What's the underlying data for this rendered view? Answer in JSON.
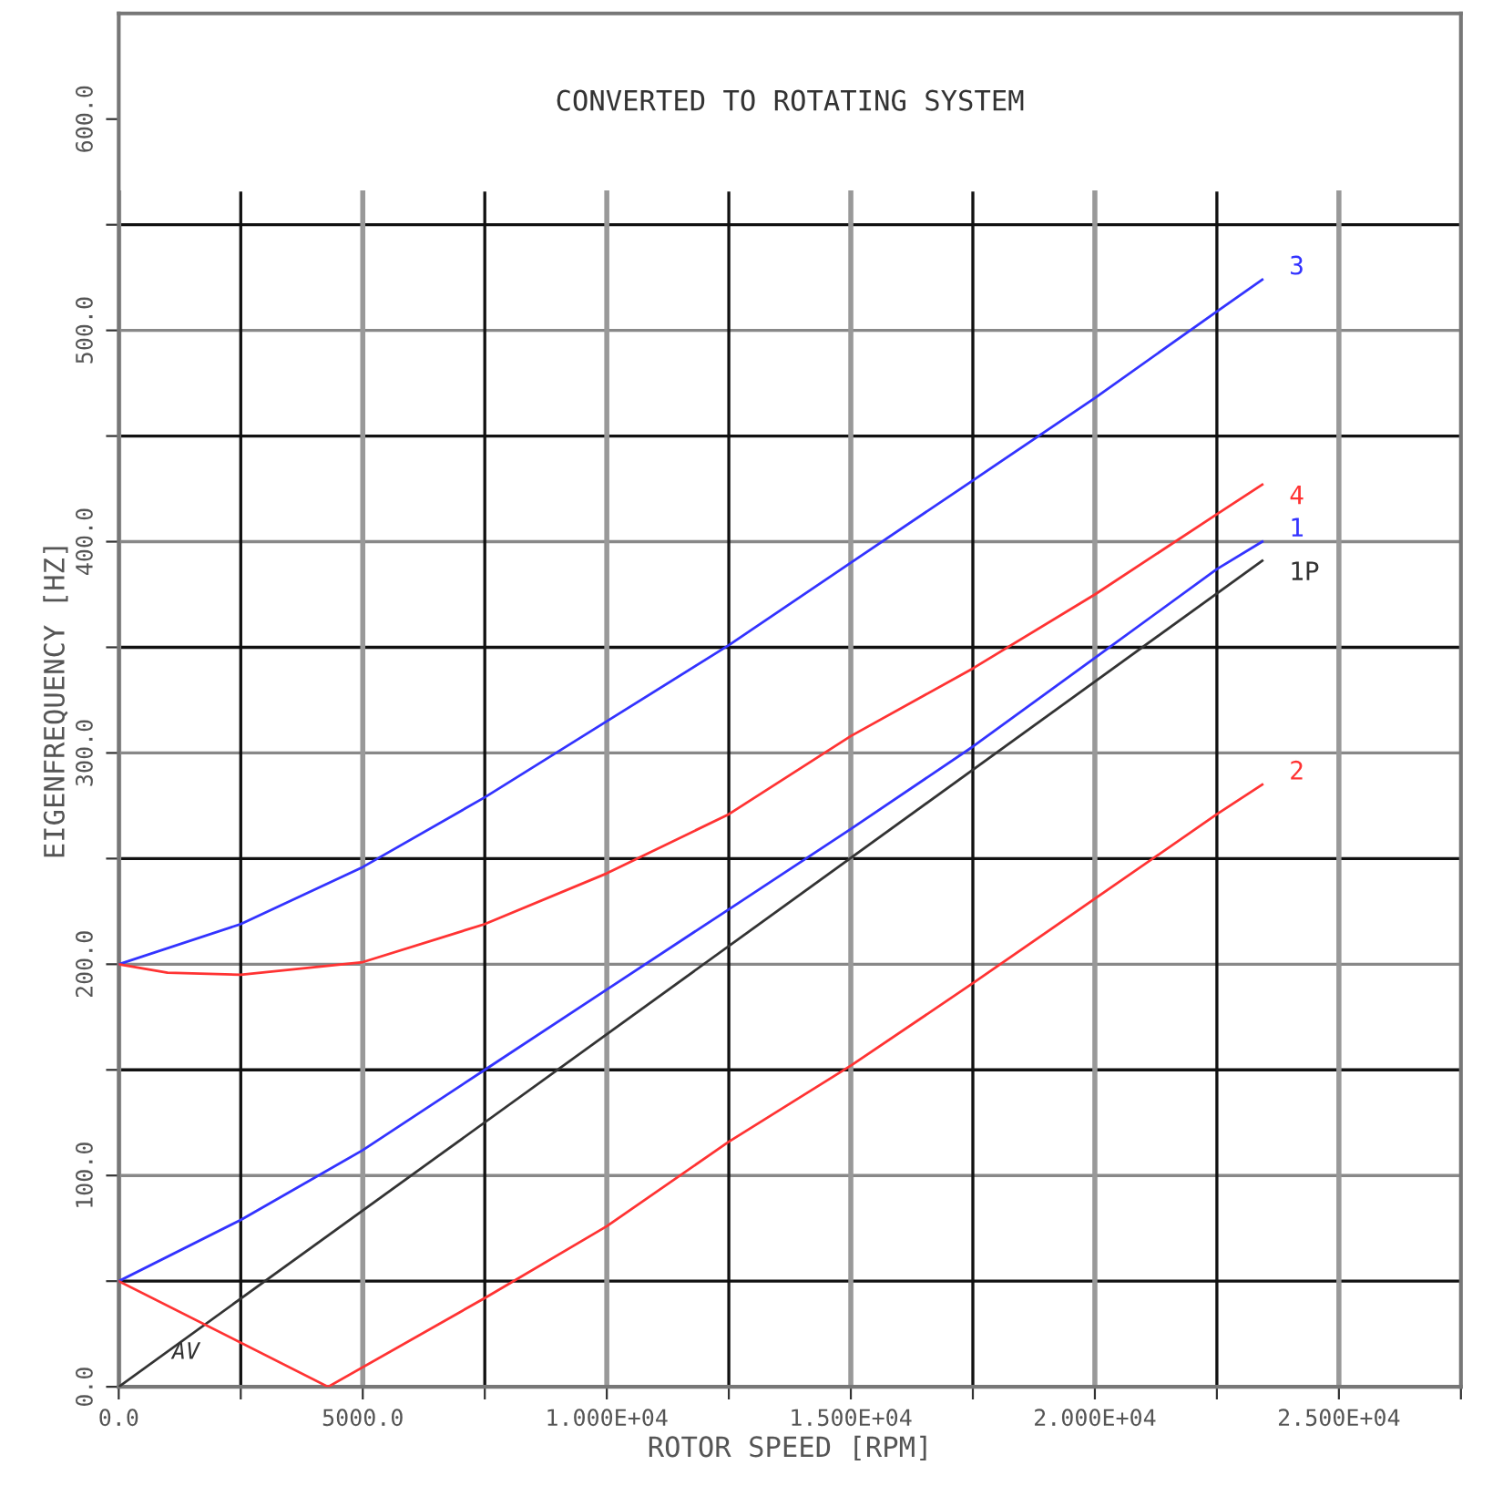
{
  "chart_data": {
    "type": "line",
    "title": "CONVERTED TO ROTATING SYSTEM",
    "xlabel": "ROTOR SPEED [RPM]",
    "ylabel": "EIGENFREQUENCY [HZ]",
    "xlim": [
      0,
      27500
    ],
    "ylim": [
      0,
      650
    ],
    "xticks": [
      {
        "value": 0,
        "label": "0.0"
      },
      {
        "value": 2500,
        "label": null
      },
      {
        "value": 5000,
        "label": "5000.0"
      },
      {
        "value": 7500,
        "label": null
      },
      {
        "value": 10000,
        "label": "1.000E+04"
      },
      {
        "value": 12500,
        "label": null
      },
      {
        "value": 15000,
        "label": "1.500E+04"
      },
      {
        "value": 17500,
        "label": null
      },
      {
        "value": 20000,
        "label": "2.000E+04"
      },
      {
        "value": 22500,
        "label": null
      },
      {
        "value": 25000,
        "label": "2.500E+04"
      },
      {
        "value": 27500,
        "label": null
      }
    ],
    "yticks": [
      {
        "value": 0,
        "label": "0.0"
      },
      {
        "value": 50,
        "label": null
      },
      {
        "value": 100,
        "label": "100.0"
      },
      {
        "value": 150,
        "label": null
      },
      {
        "value": 200,
        "label": "200.0"
      },
      {
        "value": 250,
        "label": null
      },
      {
        "value": 300,
        "label": "300.0"
      },
      {
        "value": 350,
        "label": null
      },
      {
        "value": 400,
        "label": "400.0"
      },
      {
        "value": 450,
        "label": null
      },
      {
        "value": 500,
        "label": "500.0"
      },
      {
        "value": 550,
        "label": null
      },
      {
        "value": 600,
        "label": "600.0"
      }
    ],
    "grid": true,
    "legend": false,
    "marker": "none",
    "line_style": "solid",
    "series": [
      {
        "name": "3",
        "color": "#3333ff",
        "x": [
          0,
          2500,
          5000,
          7500,
          10000,
          12500,
          15000,
          17500,
          20000,
          22500,
          23430
        ],
        "values": [
          200,
          219,
          246,
          279,
          315,
          351,
          390,
          429,
          468,
          509,
          524
        ]
      },
      {
        "name": "4",
        "color": "#ff3333",
        "x": [
          0,
          1000,
          2500,
          5000,
          7500,
          10000,
          12500,
          15000,
          17500,
          20000,
          22500,
          23430
        ],
        "values": [
          200,
          196,
          195,
          201,
          219,
          243,
          271,
          308,
          340,
          375,
          413,
          427
        ]
      },
      {
        "name": "1",
        "color": "#3333ff",
        "x": [
          0,
          2500,
          5000,
          7500,
          10000,
          12500,
          15000,
          17500,
          20000,
          22500,
          23430
        ],
        "values": [
          50,
          79,
          112,
          150,
          188,
          226,
          264,
          303,
          345,
          387,
          400
        ]
      },
      {
        "name": "1P",
        "color": "#333333",
        "x": [
          0,
          23430
        ],
        "values": [
          0,
          391
        ]
      },
      {
        "name": "2",
        "color": "#ff3333",
        "x": [
          0,
          4290,
          7500,
          10000,
          12500,
          15000,
          17500,
          20000,
          22500,
          23430
        ],
        "values": [
          50,
          0,
          42,
          76,
          116,
          152,
          191,
          231,
          271,
          285
        ]
      }
    ],
    "annotations": [
      "AV"
    ]
  }
}
